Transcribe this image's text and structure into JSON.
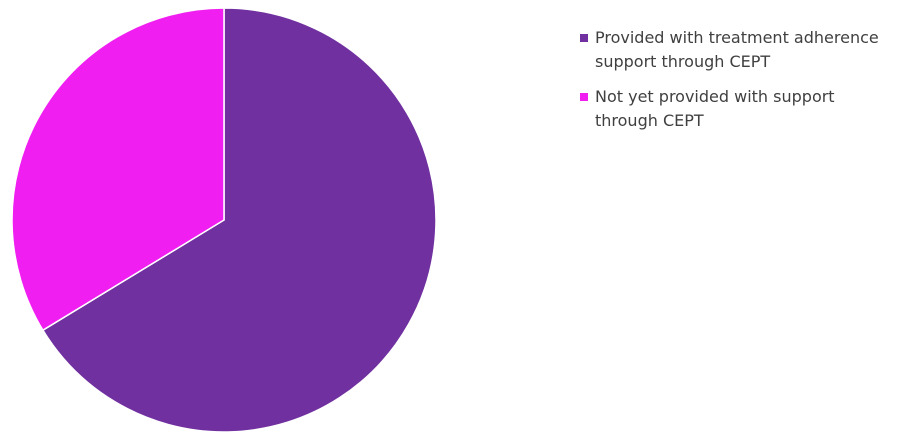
{
  "chart_data": {
    "type": "pie",
    "start_angle_deg": 0,
    "direction": "clockwise",
    "slices": [
      {
        "label": "Provided with treatment adherence support through CEPT",
        "value": 66.3,
        "color": "#7030a0"
      },
      {
        "label": "Not yet provided with support through CEPT",
        "value": 33.7,
        "color": "#f01ef0"
      }
    ],
    "legend_position": "right"
  }
}
